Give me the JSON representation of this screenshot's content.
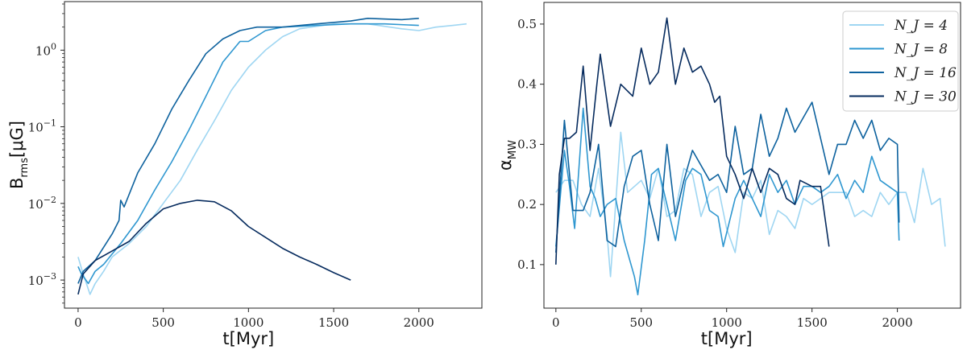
{
  "chart_data": [
    {
      "type": "line",
      "xlabel": "t[Myr]",
      "ylabel": "B",
      "ylabel_sub": "rms",
      "ylabel_unit": "[μG]",
      "yscale": "log",
      "xlim": [
        -80,
        2370
      ],
      "ylim": [
        0.00043,
        4.3
      ],
      "xticks": [
        0,
        500,
        1000,
        1500,
        2000
      ],
      "xtick_labels": [
        "0",
        "500",
        "1000",
        "1500",
        "2000"
      ],
      "yticks": [
        1,
        0.1,
        0.01,
        0.001
      ],
      "ytick_labels": [
        {
          "base": "10",
          "exp": "0"
        },
        {
          "base": "10",
          "exp": "−1"
        },
        {
          "base": "10",
          "exp": "−2"
        },
        {
          "base": "10",
          "exp": "−3"
        }
      ],
      "grid": false,
      "series": [
        {
          "name": "N_J = 4",
          "color": "#9fd6f2",
          "x": [
            0,
            25,
            70,
            100,
            150,
            200,
            300,
            400,
            500,
            600,
            700,
            800,
            900,
            1000,
            1100,
            1200,
            1300,
            1500,
            1700,
            1900,
            2000,
            2100,
            2200,
            2280
          ],
          "y": [
            0.002,
            0.0013,
            0.00065,
            0.0009,
            0.0013,
            0.002,
            0.003,
            0.005,
            0.01,
            0.02,
            0.05,
            0.12,
            0.3,
            0.6,
            1.0,
            1.5,
            1.9,
            2.2,
            2.2,
            1.9,
            1.8,
            2.0,
            2.1,
            2.2
          ]
        },
        {
          "name": "N_J = 8",
          "color": "#2f97d0",
          "x": [
            0,
            20,
            60,
            100,
            150,
            250,
            350,
            450,
            550,
            650,
            750,
            850,
            950,
            1000,
            1100,
            1200,
            1400,
            1600,
            1800,
            2000
          ],
          "y": [
            0.0015,
            0.0012,
            0.0009,
            0.0013,
            0.0016,
            0.003,
            0.006,
            0.015,
            0.035,
            0.09,
            0.25,
            0.7,
            1.3,
            1.3,
            1.8,
            2.0,
            2.1,
            2.2,
            2.2,
            2.1
          ]
        },
        {
          "name": "N_J = 16",
          "color": "#0e629e",
          "x": [
            0,
            30,
            100,
            200,
            240,
            250,
            270,
            350,
            450,
            550,
            650,
            750,
            850,
            950,
            1050,
            1200,
            1400,
            1600,
            1700,
            1900,
            2000
          ],
          "y": [
            0.0009,
            0.0013,
            0.0018,
            0.004,
            0.006,
            0.011,
            0.009,
            0.025,
            0.06,
            0.17,
            0.4,
            0.9,
            1.4,
            1.8,
            2.0,
            2.0,
            2.2,
            2.4,
            2.6,
            2.5,
            2.6
          ]
        },
        {
          "name": "N_J = 30",
          "color": "#062b5e",
          "x": [
            0,
            30,
            100,
            200,
            300,
            400,
            500,
            600,
            700,
            800,
            900,
            1000,
            1100,
            1200,
            1300,
            1400,
            1500,
            1600
          ],
          "y": [
            0.00065,
            0.0012,
            0.0018,
            0.0024,
            0.0032,
            0.0055,
            0.0085,
            0.01,
            0.011,
            0.0105,
            0.008,
            0.005,
            0.0036,
            0.0026,
            0.002,
            0.0016,
            0.00125,
            0.001
          ]
        }
      ]
    },
    {
      "type": "line",
      "xlabel": "t[Myr]",
      "ylabel": "α",
      "ylabel_sub": "MW",
      "ylabel_unit": "",
      "yscale": "linear",
      "xlim": [
        -70,
        2370
      ],
      "ylim": [
        0.0276,
        0.536
      ],
      "xticks": [
        0,
        500,
        1000,
        1500,
        2000
      ],
      "xtick_labels": [
        "0",
        "500",
        "1000",
        "1500",
        "2000"
      ],
      "yticks": [
        0.1,
        0.2,
        0.3,
        0.4,
        0.5
      ],
      "ytick_labels": [
        "0.1",
        "0.2",
        "0.3",
        "0.4",
        "0.5"
      ],
      "grid": false,
      "legend": {
        "position": "top-right",
        "entries": [
          "N_J = 4",
          "N_J = 8",
          "N_J = 16",
          "N_J = 30"
        ]
      },
      "series": [
        {
          "name": "N_J = 4",
          "color": "#9fd6f2",
          "x": [
            0,
            50,
            100,
            150,
            200,
            250,
            300,
            320,
            380,
            420,
            500,
            550,
            600,
            650,
            700,
            750,
            800,
            850,
            900,
            950,
            1000,
            1050,
            1100,
            1150,
            1200,
            1250,
            1300,
            1350,
            1400,
            1450,
            1500,
            1550,
            1600,
            1700,
            1750,
            1800,
            1850,
            1900,
            1950,
            2000,
            2050,
            2100,
            2150,
            2200,
            2250,
            2280
          ],
          "y": [
            0.22,
            0.24,
            0.24,
            0.2,
            0.18,
            0.26,
            0.15,
            0.08,
            0.32,
            0.22,
            0.24,
            0.21,
            0.26,
            0.18,
            0.19,
            0.26,
            0.25,
            0.18,
            0.22,
            0.23,
            0.16,
            0.12,
            0.22,
            0.21,
            0.24,
            0.15,
            0.19,
            0.18,
            0.16,
            0.21,
            0.2,
            0.21,
            0.22,
            0.22,
            0.18,
            0.19,
            0.18,
            0.22,
            0.2,
            0.22,
            0.22,
            0.17,
            0.26,
            0.2,
            0.21,
            0.13
          ]
        },
        {
          "name": "N_J = 8",
          "color": "#2f97d0",
          "x": [
            0,
            50,
            80,
            110,
            160,
            200,
            230,
            260,
            300,
            350,
            400,
            460,
            480,
            520,
            560,
            600,
            650,
            700,
            760,
            800,
            850,
            900,
            950,
            980,
            1050,
            1100,
            1150,
            1200,
            1250,
            1300,
            1350,
            1400,
            1450,
            1500,
            1550,
            1600,
            1650,
            1700,
            1750,
            1800,
            1850,
            1900,
            1950,
            2000,
            2010
          ],
          "y": [
            0.13,
            0.29,
            0.23,
            0.16,
            0.36,
            0.23,
            0.21,
            0.18,
            0.2,
            0.21,
            0.14,
            0.08,
            0.05,
            0.14,
            0.25,
            0.26,
            0.2,
            0.14,
            0.24,
            0.26,
            0.25,
            0.19,
            0.18,
            0.13,
            0.21,
            0.24,
            0.21,
            0.18,
            0.25,
            0.22,
            0.24,
            0.2,
            0.23,
            0.23,
            0.22,
            0.23,
            0.25,
            0.21,
            0.24,
            0.22,
            0.28,
            0.24,
            0.23,
            0.22,
            0.14
          ]
        },
        {
          "name": "N_J = 16",
          "color": "#0e629e",
          "x": [
            0,
            50,
            100,
            160,
            200,
            250,
            300,
            350,
            400,
            450,
            500,
            550,
            600,
            650,
            700,
            750,
            800,
            900,
            950,
            1000,
            1050,
            1100,
            1150,
            1200,
            1250,
            1300,
            1350,
            1400,
            1500,
            1550,
            1600,
            1650,
            1700,
            1750,
            1800,
            1850,
            1900,
            1950,
            2000,
            2010
          ],
          "y": [
            0.12,
            0.34,
            0.19,
            0.19,
            0.22,
            0.3,
            0.14,
            0.13,
            0.23,
            0.28,
            0.29,
            0.2,
            0.14,
            0.3,
            0.18,
            0.24,
            0.29,
            0.24,
            0.25,
            0.22,
            0.33,
            0.25,
            0.26,
            0.35,
            0.28,
            0.31,
            0.36,
            0.32,
            0.37,
            0.31,
            0.25,
            0.3,
            0.3,
            0.34,
            0.31,
            0.34,
            0.29,
            0.31,
            0.3,
            0.17
          ]
        },
        {
          "name": "N_J = 30",
          "color": "#062b5e",
          "x": [
            0,
            20,
            50,
            80,
            120,
            160,
            200,
            240,
            260,
            320,
            380,
            450,
            500,
            550,
            600,
            650,
            700,
            750,
            800,
            850,
            900,
            930,
            960,
            1000,
            1050,
            1100,
            1150,
            1200,
            1250,
            1300,
            1350,
            1400,
            1430,
            1500,
            1550,
            1600
          ],
          "y": [
            0.1,
            0.25,
            0.31,
            0.31,
            0.32,
            0.43,
            0.29,
            0.4,
            0.45,
            0.33,
            0.4,
            0.38,
            0.46,
            0.4,
            0.42,
            0.51,
            0.4,
            0.46,
            0.42,
            0.43,
            0.4,
            0.37,
            0.38,
            0.28,
            0.25,
            0.21,
            0.26,
            0.22,
            0.26,
            0.25,
            0.21,
            0.2,
            0.24,
            0.23,
            0.23,
            0.13
          ]
        }
      ]
    }
  ]
}
